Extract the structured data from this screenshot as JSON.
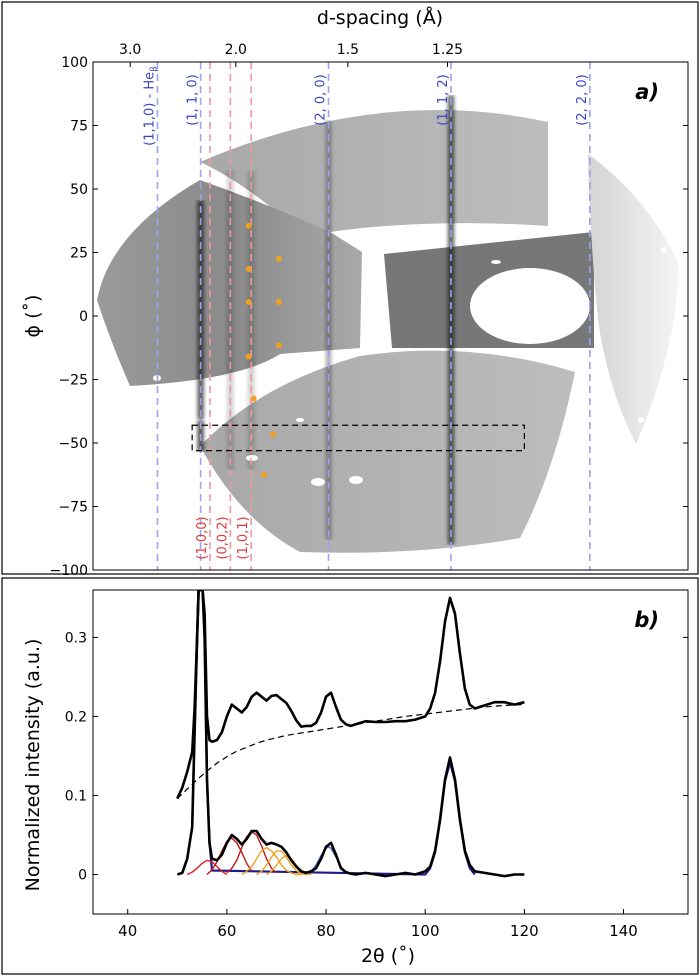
{
  "chart_data": [
    {
      "type": "heatmap",
      "panel_label": "a)",
      "title": "d-spacing (Å)",
      "top_ticks": [
        {
          "label": "3.0",
          "two_theta": 40.5
        },
        {
          "label": "2.0",
          "two_theta": 61.8
        },
        {
          "label": "1.5",
          "two_theta": 84.4
        },
        {
          "label": "1.25",
          "two_theta": 104.5
        }
      ],
      "ylabel": "ϕ (˚)",
      "xlim": [
        33,
        153
      ],
      "ylim": [
        -100,
        100
      ],
      "yticks": [
        100,
        75,
        50,
        25,
        0,
        -25,
        -50,
        -75,
        -100
      ],
      "reflections_blue": [
        {
          "label": "(1,1,0) - He",
          "sub": "β",
          "two_theta": 46
        },
        {
          "label": "(1, 1, 0)",
          "sub": "",
          "two_theta": 54.7
        },
        {
          "label": "(2, 0, 0)",
          "sub": "",
          "two_theta": 80.5
        },
        {
          "label": "(1, 1, 2)",
          "sub": "",
          "two_theta": 105.2
        },
        {
          "label": "(2, 2, 0)",
          "sub": "",
          "two_theta": 133.2
        }
      ],
      "reflections_red": [
        {
          "label": "(1,0,0)",
          "two_theta": 56.6
        },
        {
          "label": "(0,0,2)",
          "two_theta": 60.7
        },
        {
          "label": "(1,0,1)",
          "two_theta": 64.9
        }
      ],
      "spots_orange": [
        {
          "x": 64.4,
          "y": 35.5
        },
        {
          "x": 64.4,
          "y": 18.5
        },
        {
          "x": 64.4,
          "y": 5.5
        },
        {
          "x": 64.4,
          "y": -16
        },
        {
          "x": 65.4,
          "y": -32.5
        },
        {
          "x": 70.5,
          "y": 22.5
        },
        {
          "x": 70.5,
          "y": 5.5
        },
        {
          "x": 70.5,
          "y": -11.5
        },
        {
          "x": 69.3,
          "y": -46.5
        },
        {
          "x": 67.5,
          "y": -62.5
        }
      ],
      "integration_box": {
        "x": [
          53,
          120
        ],
        "y": [
          -43,
          -53
        ]
      }
    },
    {
      "type": "line",
      "panel_label": "b)",
      "xlabel": "2θ (˚)",
      "ylabel": "Normalized intensity (a.u.)",
      "xlim": [
        33,
        153
      ],
      "ylim": [
        -0.05,
        0.36
      ],
      "xticks": [
        40,
        60,
        80,
        100,
        120,
        140
      ],
      "yticks": [
        0,
        0.1,
        0.2,
        0.3
      ],
      "series": [
        {
          "color": "#000000",
          "x": [
            50,
            51,
            52,
            53,
            53.5,
            54,
            54.3,
            54.7,
            55.1,
            55.5,
            56,
            56.5,
            57,
            58,
            59,
            60,
            61,
            62,
            63,
            64,
            65,
            66,
            67,
            68,
            69,
            70,
            71,
            72,
            73,
            74,
            75,
            76,
            77,
            78,
            79,
            80,
            81,
            82,
            83,
            84,
            85,
            86,
            88,
            90,
            92,
            94,
            96,
            98,
            100,
            101,
            102,
            103,
            104,
            105,
            106,
            107,
            108,
            109,
            110,
            112,
            114,
            116,
            118,
            120
          ],
          "y": [
            0.096,
            0.11,
            0.13,
            0.155,
            0.21,
            0.3,
            0.36,
            0.36,
            0.36,
            0.33,
            0.2,
            0.17,
            0.168,
            0.17,
            0.18,
            0.2,
            0.215,
            0.21,
            0.205,
            0.212,
            0.225,
            0.23,
            0.225,
            0.22,
            0.226,
            0.227,
            0.222,
            0.217,
            0.207,
            0.195,
            0.187,
            0.188,
            0.188,
            0.192,
            0.205,
            0.225,
            0.23,
            0.212,
            0.196,
            0.19,
            0.188,
            0.19,
            0.194,
            0.193,
            0.193,
            0.194,
            0.194,
            0.196,
            0.2,
            0.21,
            0.23,
            0.27,
            0.32,
            0.35,
            0.33,
            0.28,
            0.235,
            0.215,
            0.21,
            0.214,
            0.218,
            0.218,
            0.215,
            0.218
          ]
        },
        {
          "color": "#000000",
          "style": "dashed",
          "x": [
            50,
            52,
            54,
            56,
            58,
            60,
            62,
            64,
            66,
            68,
            70,
            72,
            74,
            76,
            78,
            80,
            84,
            88,
            92,
            96,
            100,
            104,
            108,
            112,
            116,
            120
          ],
          "y": [
            0.096,
            0.108,
            0.12,
            0.131,
            0.141,
            0.149,
            0.156,
            0.161,
            0.166,
            0.17,
            0.173,
            0.176,
            0.178,
            0.18,
            0.182,
            0.184,
            0.188,
            0.192,
            0.196,
            0.2,
            0.203,
            0.206,
            0.209,
            0.212,
            0.214,
            0.215
          ]
        },
        {
          "color": "#000000",
          "x": [
            50,
            51,
            52,
            53,
            53.5,
            54,
            54.3,
            54.7,
            55.1,
            55.5,
            56,
            56.5,
            57,
            58,
            59,
            60,
            61,
            62,
            63,
            64,
            65,
            66,
            67,
            68,
            69,
            70,
            71,
            72,
            73,
            74,
            75,
            76,
            77,
            78,
            79,
            80,
            81,
            82,
            83,
            84,
            85,
            86,
            88,
            90,
            92,
            94,
            96,
            98,
            100,
            101,
            102,
            103,
            104,
            105,
            106,
            107,
            108,
            109,
            110,
            112,
            114,
            116,
            118,
            120
          ],
          "y": [
            0,
            0.002,
            0.02,
            0.06,
            0.18,
            0.3,
            0.36,
            0.36,
            0.36,
            0.3,
            0.12,
            0.04,
            0.02,
            0.018,
            0.025,
            0.04,
            0.05,
            0.045,
            0.038,
            0.045,
            0.055,
            0.055,
            0.045,
            0.038,
            0.04,
            0.038,
            0.035,
            0.028,
            0.018,
            0.01,
            0.004,
            0.002,
            0.004,
            0.008,
            0.02,
            0.035,
            0.04,
            0.025,
            0.008,
            0.003,
            0.001,
            0,
            0.002,
            0,
            -0.002,
            0,
            0.002,
            0,
            0.004,
            0.01,
            0.03,
            0.07,
            0.12,
            0.148,
            0.12,
            0.07,
            0.03,
            0.012,
            0.004,
            0.002,
            0,
            -0.002,
            0,
            0
          ]
        },
        {
          "color": "#1c1c8c",
          "x": [
            53,
            53.5,
            54,
            54.3,
            54.7,
            55.1,
            55.5,
            56,
            56.5,
            57,
            100,
            101,
            102,
            103,
            104,
            105,
            106,
            107,
            108,
            109,
            110
          ],
          "y": [
            0.06,
            0.18,
            0.3,
            0.36,
            0.36,
            0.36,
            0.3,
            0.12,
            0.04,
            0.005,
            0,
            0.008,
            0.028,
            0.068,
            0.118,
            0.142,
            0.118,
            0.068,
            0.028,
            0.008,
            0
          ]
        },
        {
          "color": "#4d5fd1",
          "x": [
            76,
            77,
            78,
            79,
            80,
            80.5,
            81,
            82,
            83,
            84,
            85
          ],
          "y": [
            0,
            0.004,
            0.012,
            0.024,
            0.033,
            0.035,
            0.033,
            0.022,
            0.01,
            0.003,
            0
          ]
        },
        {
          "color": "#e02020",
          "x": [
            52,
            53,
            54,
            55,
            56,
            57,
            58,
            59,
            60
          ],
          "y": [
            0,
            0.003,
            0.008,
            0.014,
            0.018,
            0.016,
            0.01,
            0.004,
            0
          ]
        },
        {
          "color": "#c01818",
          "x": [
            56,
            57,
            58,
            59,
            60,
            61,
            62,
            63,
            64,
            65
          ],
          "y": [
            0,
            0.006,
            0.016,
            0.03,
            0.042,
            0.046,
            0.04,
            0.028,
            0.014,
            0.004
          ]
        },
        {
          "color": "#c01818",
          "x": [
            60,
            61,
            62,
            63,
            64,
            65,
            66,
            67,
            68,
            69,
            70
          ],
          "y": [
            0.002,
            0.008,
            0.018,
            0.034,
            0.048,
            0.054,
            0.05,
            0.036,
            0.02,
            0.008,
            0.002
          ]
        },
        {
          "color": "#f0a020",
          "x": [
            63,
            64,
            65,
            66,
            67,
            68,
            69,
            70,
            71,
            72,
            73,
            74,
            75
          ],
          "y": [
            0,
            0.004,
            0.01,
            0.02,
            0.03,
            0.034,
            0.03,
            0.022,
            0.012,
            0.005,
            0.002,
            0,
            0
          ]
        },
        {
          "color": "#f0a020",
          "x": [
            66,
            67,
            68,
            69,
            70,
            71,
            72,
            73,
            74,
            75,
            76
          ],
          "y": [
            0,
            0.004,
            0.012,
            0.022,
            0.03,
            0.03,
            0.022,
            0.012,
            0.005,
            0.001,
            0
          ]
        },
        {
          "color": "#f0a020",
          "x": [
            68,
            69,
            70,
            71,
            72,
            73,
            74,
            75,
            76,
            77
          ],
          "y": [
            0,
            0.004,
            0.012,
            0.02,
            0.024,
            0.02,
            0.012,
            0.004,
            0.001,
            0
          ]
        }
      ]
    }
  ]
}
